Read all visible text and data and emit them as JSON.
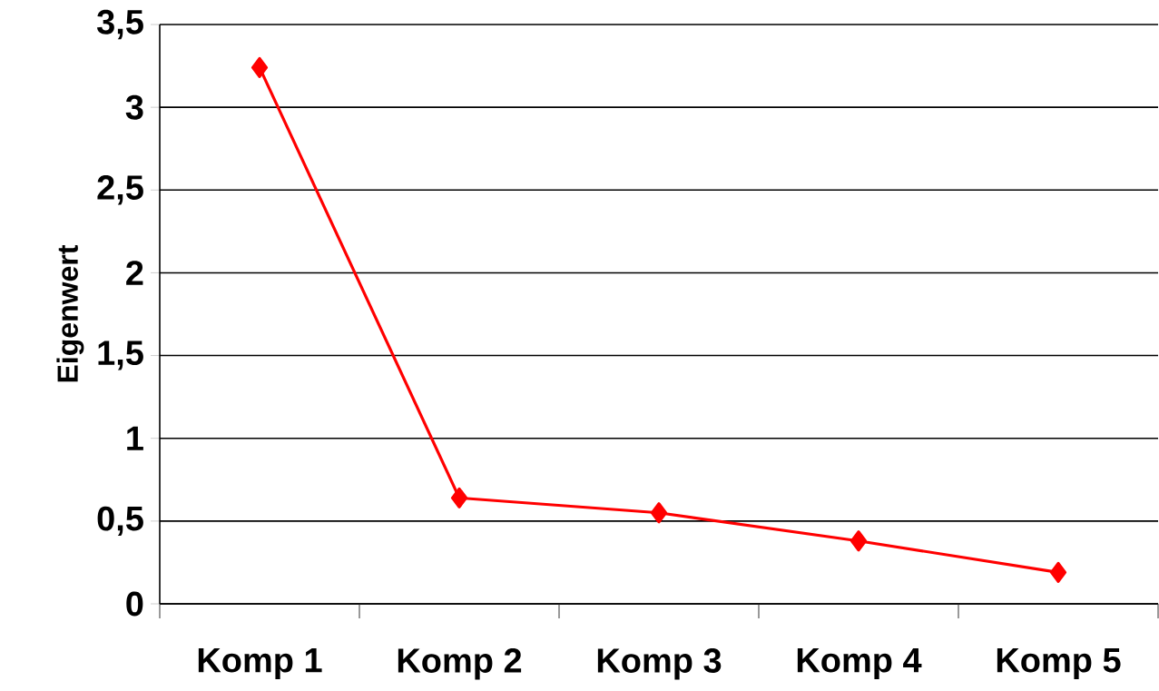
{
  "chart_data": {
    "type": "line",
    "ylabel": "Eigenwert",
    "categories": [
      "Komp 1",
      "Komp 2",
      "Komp 3",
      "Komp 4",
      "Komp 5"
    ],
    "series": [
      {
        "color": "#ff0000",
        "values": [
          3.24,
          0.64,
          0.55,
          0.38,
          0.19
        ]
      }
    ],
    "ylim": [
      0,
      3.5
    ],
    "yticks": [
      0,
      {
        "value": 0.5,
        "label": "0,5"
      },
      1,
      {
        "value": 1.5,
        "label": "1,5"
      },
      2,
      {
        "value": 2.5,
        "label": "2,5"
      },
      3,
      {
        "value": 3.5,
        "label": "3,5"
      }
    ],
    "grid": "y",
    "marker": "diamond",
    "line_style": "solid"
  }
}
